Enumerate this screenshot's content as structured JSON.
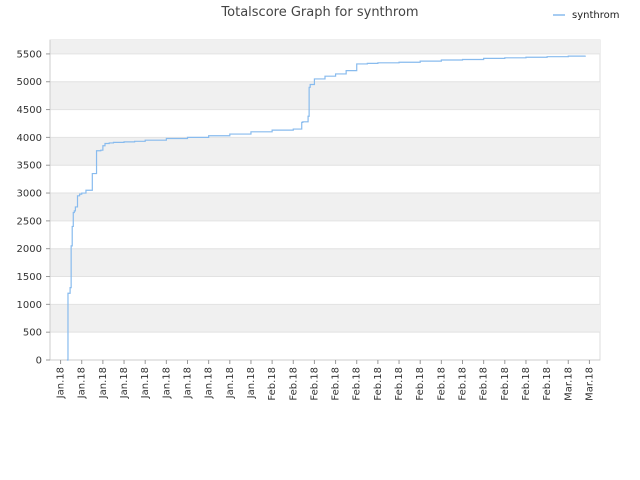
{
  "chart_data": {
    "type": "line",
    "title": "Totalscore Graph for synthrom",
    "xlabel": "",
    "ylabel": "",
    "ylim": [
      0,
      5750
    ],
    "yticks": [
      0,
      500,
      1000,
      1500,
      2000,
      2500,
      3000,
      3500,
      4000,
      4500,
      5000,
      5500
    ],
    "x_tick_labels": [
      "Jan.18",
      "Jan.18",
      "Jan.18",
      "Jan.18",
      "Jan.18",
      "Jan.18",
      "Jan.18",
      "Jan.18",
      "Jan.18",
      "Jan.18",
      "Feb.18",
      "Feb.18",
      "Feb.18",
      "Feb.18",
      "Feb.18",
      "Feb.18",
      "Feb.18",
      "Feb.18",
      "Feb.18",
      "Feb.18",
      "Feb.18",
      "Feb.18",
      "Feb.18",
      "Feb.18",
      "Mar.18",
      "Mar.18"
    ],
    "grid": true,
    "legend_position": "top-right",
    "series": [
      {
        "name": "synthrom",
        "color": "#88bbee",
        "x": [
          0.3,
          0.35,
          0.45,
          0.5,
          0.55,
          0.6,
          0.65,
          0.7,
          0.8,
          0.9,
          1.0,
          1.2,
          1.5,
          1.7,
          1.9,
          2.0,
          2.1,
          2.2,
          2.3,
          2.5,
          3.0,
          3.5,
          4.0,
          5.0,
          6.0,
          7.0,
          8.0,
          9.0,
          10.0,
          11.0,
          11.4,
          11.45,
          11.7,
          11.75,
          11.8,
          12.0,
          12.5,
          13.0,
          13.5,
          14.0,
          14.5,
          15.0,
          16.0,
          17.0,
          18.0,
          19.0,
          20.0,
          21.0,
          22.0,
          23.0,
          24.0,
          24.8
        ],
        "y": [
          0,
          1200,
          1300,
          2050,
          2400,
          2650,
          2680,
          2750,
          2950,
          2980,
          3000,
          3050,
          3350,
          3760,
          3770,
          3850,
          3890,
          3890,
          3900,
          3910,
          3920,
          3930,
          3950,
          3980,
          4000,
          4030,
          4060,
          4100,
          4130,
          4150,
          4270,
          4280,
          4380,
          4900,
          4950,
          5050,
          5100,
          5140,
          5200,
          5320,
          5330,
          5340,
          5350,
          5370,
          5390,
          5400,
          5420,
          5430,
          5440,
          5450,
          5460,
          5470
        ]
      }
    ]
  }
}
